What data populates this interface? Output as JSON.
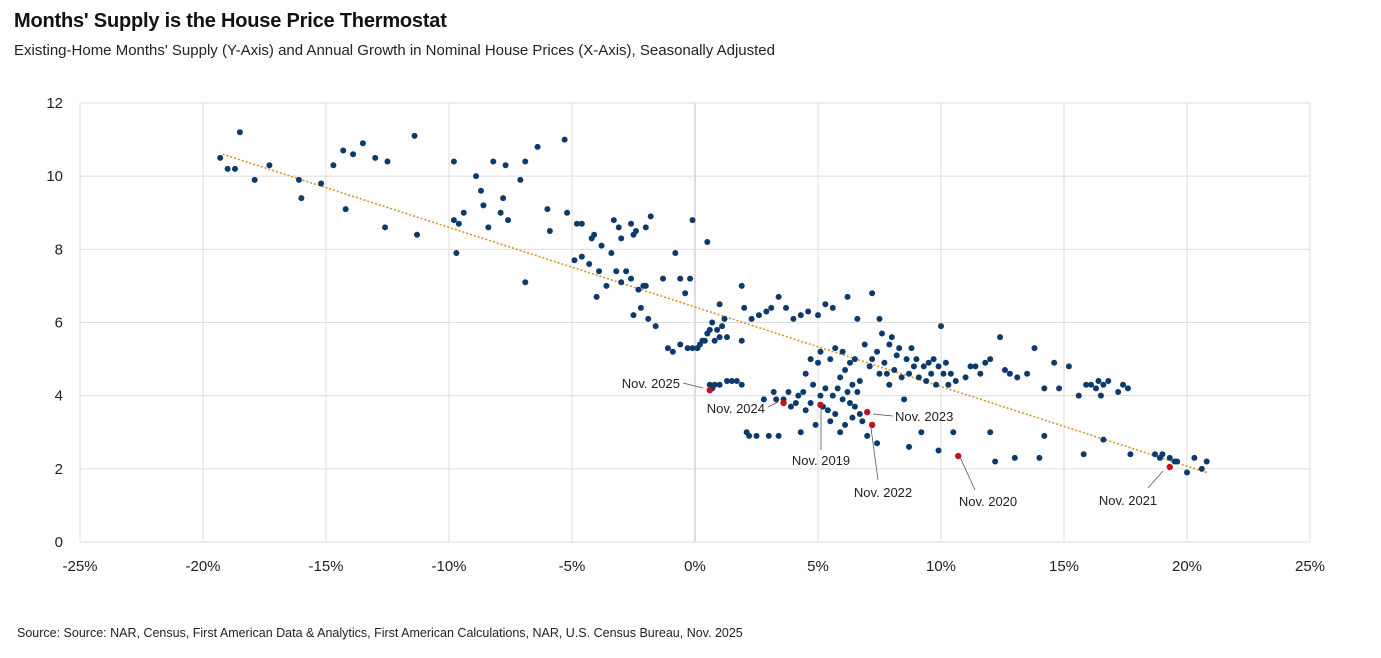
{
  "chart_data": {
    "type": "scatter",
    "title": "Months' Supply is the House Price Thermostat",
    "subtitle": "Existing-Home Months' Supply (Y-Axis) and Annual Growth in Nominal House Prices (X-Axis), Seasonally Adjusted",
    "source": "Source: Source: NAR, Census, First American Data & Analytics, First American Calculations, NAR, U.S. Census Bureau, Nov. 2025",
    "xlabel": "",
    "ylabel": "",
    "xlim": [
      -25,
      25
    ],
    "ylim": [
      0,
      12
    ],
    "x_ticks": [
      "-25%",
      "-20%",
      "-15%",
      "-10%",
      "-5%",
      "0%",
      "5%",
      "10%",
      "15%",
      "20%",
      "25%"
    ],
    "y_ticks": [
      "0",
      "2",
      "4",
      "6",
      "8",
      "10",
      "12"
    ],
    "grid": true,
    "colors": {
      "points": "#0b3a6b",
      "highlight": "#c0141c",
      "trendline": "#d4952a",
      "grid": "#dddddd"
    },
    "trendline": {
      "x": [
        -19.2,
        20.8
      ],
      "y": [
        10.6,
        1.9
      ]
    },
    "series": [
      {
        "values": [
          [
            -19.3,
            10.5
          ],
          [
            -19.0,
            10.2
          ],
          [
            -18.7,
            10.2
          ],
          [
            -18.5,
            11.2
          ],
          [
            -17.9,
            9.9
          ],
          [
            -17.3,
            10.3
          ],
          [
            -16.1,
            9.9
          ],
          [
            -16.0,
            9.4
          ],
          [
            -15.2,
            9.8
          ],
          [
            -14.7,
            10.3
          ],
          [
            -14.3,
            10.7
          ],
          [
            -14.2,
            9.1
          ],
          [
            -13.9,
            10.6
          ],
          [
            -13.5,
            10.9
          ],
          [
            -13.0,
            10.5
          ],
          [
            -12.6,
            8.6
          ],
          [
            -12.5,
            10.4
          ],
          [
            -11.4,
            11.1
          ],
          [
            -11.3,
            8.4
          ],
          [
            -9.8,
            10.4
          ],
          [
            -9.8,
            8.8
          ],
          [
            -9.7,
            7.9
          ],
          [
            -9.6,
            8.7
          ],
          [
            -9.4,
            9.0
          ],
          [
            -8.9,
            10.0
          ],
          [
            -8.7,
            9.6
          ],
          [
            -8.6,
            9.2
          ],
          [
            -8.4,
            8.6
          ],
          [
            -8.2,
            10.4
          ],
          [
            -7.9,
            9.0
          ],
          [
            -7.8,
            9.4
          ],
          [
            -7.7,
            10.3
          ],
          [
            -7.6,
            8.8
          ],
          [
            -7.1,
            9.9
          ],
          [
            -6.9,
            10.4
          ],
          [
            -6.9,
            7.1
          ],
          [
            -6.4,
            10.8
          ],
          [
            -6.0,
            9.1
          ],
          [
            -5.9,
            8.5
          ],
          [
            -5.3,
            11.0
          ],
          [
            -5.2,
            9.0
          ],
          [
            -4.9,
            7.7
          ],
          [
            -4.8,
            8.7
          ],
          [
            -4.6,
            8.7
          ],
          [
            -4.6,
            7.8
          ],
          [
            -4.3,
            7.6
          ],
          [
            -4.2,
            8.3
          ],
          [
            -4.1,
            8.4
          ],
          [
            -4.0,
            6.7
          ],
          [
            -3.9,
            7.4
          ],
          [
            -3.8,
            8.1
          ],
          [
            -3.6,
            7.0
          ],
          [
            -3.4,
            7.9
          ],
          [
            -3.3,
            8.8
          ],
          [
            -3.2,
            7.4
          ],
          [
            -3.1,
            8.6
          ],
          [
            -3.0,
            8.3
          ],
          [
            -3.0,
            7.1
          ],
          [
            -2.8,
            7.4
          ],
          [
            -2.6,
            8.7
          ],
          [
            -2.6,
            7.2
          ],
          [
            -2.5,
            8.4
          ],
          [
            -2.5,
            6.2
          ],
          [
            -2.4,
            8.5
          ],
          [
            -2.3,
            6.9
          ],
          [
            -2.2,
            6.4
          ],
          [
            -2.1,
            7.0
          ],
          [
            -2.0,
            8.6
          ],
          [
            -2.0,
            7.0
          ],
          [
            -1.9,
            6.1
          ],
          [
            -1.8,
            8.9
          ],
          [
            -1.6,
            5.9
          ],
          [
            -1.3,
            7.2
          ],
          [
            -1.1,
            5.3
          ],
          [
            -0.9,
            5.2
          ],
          [
            -0.8,
            7.9
          ],
          [
            -0.6,
            7.2
          ],
          [
            -0.6,
            5.4
          ],
          [
            -0.4,
            6.8
          ],
          [
            -0.3,
            5.3
          ],
          [
            -0.2,
            7.2
          ],
          [
            -0.1,
            5.3
          ],
          [
            -0.1,
            8.8
          ],
          [
            0.1,
            5.3
          ],
          [
            0.2,
            5.4
          ],
          [
            0.3,
            5.5
          ],
          [
            0.4,
            5.5
          ],
          [
            0.5,
            8.2
          ],
          [
            0.5,
            5.7
          ],
          [
            0.6,
            5.8
          ],
          [
            0.7,
            6.0
          ],
          [
            0.8,
            5.5
          ],
          [
            0.9,
            5.8
          ],
          [
            1.0,
            5.6
          ],
          [
            1.0,
            6.5
          ],
          [
            1.1,
            5.9
          ],
          [
            1.2,
            6.1
          ],
          [
            1.3,
            5.6
          ],
          [
            0.6,
            4.3
          ],
          [
            0.7,
            4.2
          ],
          [
            0.8,
            4.3
          ],
          [
            1.0,
            4.3
          ],
          [
            1.3,
            4.4
          ],
          [
            1.5,
            4.4
          ],
          [
            1.7,
            4.4
          ],
          [
            1.9,
            4.3
          ],
          [
            1.9,
            5.5
          ],
          [
            1.9,
            7.0
          ],
          [
            2.0,
            6.4
          ],
          [
            2.1,
            3.0
          ],
          [
            2.2,
            2.9
          ],
          [
            2.3,
            6.1
          ],
          [
            2.5,
            2.9
          ],
          [
            2.6,
            6.2
          ],
          [
            2.8,
            3.9
          ],
          [
            2.9,
            6.3
          ],
          [
            3.0,
            2.9
          ],
          [
            3.1,
            6.4
          ],
          [
            3.2,
            4.1
          ],
          [
            3.3,
            3.9
          ],
          [
            3.4,
            2.9
          ],
          [
            3.4,
            6.7
          ],
          [
            3.6,
            3.9
          ],
          [
            3.7,
            6.4
          ],
          [
            3.8,
            4.1
          ],
          [
            3.9,
            3.7
          ],
          [
            4.0,
            6.1
          ],
          [
            4.1,
            3.8
          ],
          [
            4.2,
            4.0
          ],
          [
            4.3,
            3.0
          ],
          [
            4.3,
            6.2
          ],
          [
            4.4,
            4.1
          ],
          [
            4.5,
            3.6
          ],
          [
            4.5,
            4.6
          ],
          [
            4.6,
            6.3
          ],
          [
            4.7,
            3.8
          ],
          [
            4.7,
            5.0
          ],
          [
            4.8,
            4.3
          ],
          [
            4.9,
            3.2
          ],
          [
            5.0,
            6.2
          ],
          [
            5.0,
            4.9
          ],
          [
            5.1,
            4.0
          ],
          [
            5.1,
            5.2
          ],
          [
            5.2,
            3.7
          ],
          [
            5.3,
            4.2
          ],
          [
            5.3,
            6.5
          ],
          [
            5.4,
            3.6
          ],
          [
            5.5,
            5.0
          ],
          [
            5.5,
            3.3
          ],
          [
            5.6,
            4.0
          ],
          [
            5.6,
            6.4
          ],
          [
            5.7,
            5.3
          ],
          [
            5.7,
            3.5
          ],
          [
            5.8,
            4.2
          ],
          [
            5.9,
            4.5
          ],
          [
            5.9,
            3.0
          ],
          [
            6.0,
            5.2
          ],
          [
            6.0,
            3.9
          ],
          [
            6.1,
            4.7
          ],
          [
            6.1,
            3.2
          ],
          [
            6.2,
            6.7
          ],
          [
            6.2,
            4.1
          ],
          [
            6.3,
            3.8
          ],
          [
            6.3,
            4.9
          ],
          [
            6.4,
            3.4
          ],
          [
            6.4,
            4.3
          ],
          [
            6.5,
            3.7
          ],
          [
            6.5,
            5.0
          ],
          [
            6.6,
            4.1
          ],
          [
            6.6,
            6.1
          ],
          [
            6.7,
            3.5
          ],
          [
            6.7,
            4.4
          ],
          [
            6.8,
            3.3
          ],
          [
            6.9,
            5.4
          ],
          [
            7.0,
            2.9
          ],
          [
            7.1,
            4.8
          ],
          [
            7.2,
            6.8
          ],
          [
            7.2,
            5.0
          ],
          [
            7.4,
            2.7
          ],
          [
            7.4,
            5.2
          ],
          [
            7.5,
            6.1
          ],
          [
            7.5,
            4.6
          ],
          [
            7.6,
            5.7
          ],
          [
            7.7,
            4.9
          ],
          [
            7.8,
            4.6
          ],
          [
            7.9,
            5.4
          ],
          [
            7.9,
            4.3
          ],
          [
            8.0,
            5.6
          ],
          [
            8.1,
            4.7
          ],
          [
            8.2,
            5.1
          ],
          [
            8.3,
            5.3
          ],
          [
            8.4,
            4.5
          ],
          [
            8.5,
            3.9
          ],
          [
            8.6,
            5.0
          ],
          [
            8.7,
            4.6
          ],
          [
            8.7,
            2.6
          ],
          [
            8.8,
            5.3
          ],
          [
            8.9,
            4.8
          ],
          [
            9.0,
            5.0
          ],
          [
            9.1,
            4.5
          ],
          [
            9.2,
            3.0
          ],
          [
            9.3,
            4.8
          ],
          [
            9.4,
            4.4
          ],
          [
            9.5,
            4.9
          ],
          [
            9.6,
            4.6
          ],
          [
            9.7,
            5.0
          ],
          [
            9.8,
            4.3
          ],
          [
            9.9,
            4.8
          ],
          [
            9.9,
            2.5
          ],
          [
            10.0,
            5.9
          ],
          [
            10.1,
            4.6
          ],
          [
            10.2,
            4.9
          ],
          [
            10.3,
            4.3
          ],
          [
            10.4,
            4.6
          ],
          [
            10.5,
            3.0
          ],
          [
            10.6,
            4.4
          ],
          [
            11.0,
            4.5
          ],
          [
            11.2,
            4.8
          ],
          [
            11.4,
            4.8
          ],
          [
            11.6,
            4.6
          ],
          [
            11.8,
            4.9
          ],
          [
            12.0,
            5.0
          ],
          [
            12.0,
            3.0
          ],
          [
            12.2,
            2.2
          ],
          [
            12.4,
            5.6
          ],
          [
            12.6,
            4.7
          ],
          [
            12.8,
            4.6
          ],
          [
            13.0,
            2.3
          ],
          [
            13.1,
            4.5
          ],
          [
            13.5,
            4.6
          ],
          [
            13.8,
            5.3
          ],
          [
            14.0,
            2.3
          ],
          [
            14.2,
            4.2
          ],
          [
            14.2,
            2.9
          ],
          [
            14.6,
            4.9
          ],
          [
            14.8,
            4.2
          ],
          [
            15.2,
            4.8
          ],
          [
            15.6,
            4.0
          ],
          [
            15.8,
            2.4
          ],
          [
            15.9,
            4.3
          ],
          [
            16.1,
            4.3
          ],
          [
            16.3,
            4.2
          ],
          [
            16.4,
            4.4
          ],
          [
            16.6,
            4.3
          ],
          [
            16.8,
            4.4
          ],
          [
            16.5,
            4.0
          ],
          [
            16.6,
            2.8
          ],
          [
            17.2,
            4.1
          ],
          [
            17.4,
            4.3
          ],
          [
            17.6,
            4.2
          ],
          [
            17.7,
            2.4
          ],
          [
            18.7,
            2.4
          ],
          [
            18.9,
            2.3
          ],
          [
            19.0,
            2.4
          ],
          [
            19.3,
            2.3
          ],
          [
            19.5,
            2.2
          ],
          [
            19.6,
            2.2
          ],
          [
            20.0,
            1.9
          ],
          [
            20.3,
            2.3
          ],
          [
            20.8,
            2.2
          ],
          [
            20.6,
            2.0
          ]
        ]
      }
    ],
    "highlights": [
      {
        "label": "Nov. 2025",
        "x": 0.6,
        "y": 4.15
      },
      {
        "label": "Nov. 2024",
        "x": 3.6,
        "y": 3.8
      },
      {
        "label": "Nov. 2019",
        "x": 5.1,
        "y": 3.75
      },
      {
        "label": "Nov. 2023",
        "x": 7.0,
        "y": 3.55
      },
      {
        "label": "Nov. 2022",
        "x": 7.2,
        "y": 3.2
      },
      {
        "label": "Nov. 2020",
        "x": 10.7,
        "y": 2.35
      },
      {
        "label": "Nov. 2021",
        "x": 19.3,
        "y": 2.05
      }
    ]
  }
}
